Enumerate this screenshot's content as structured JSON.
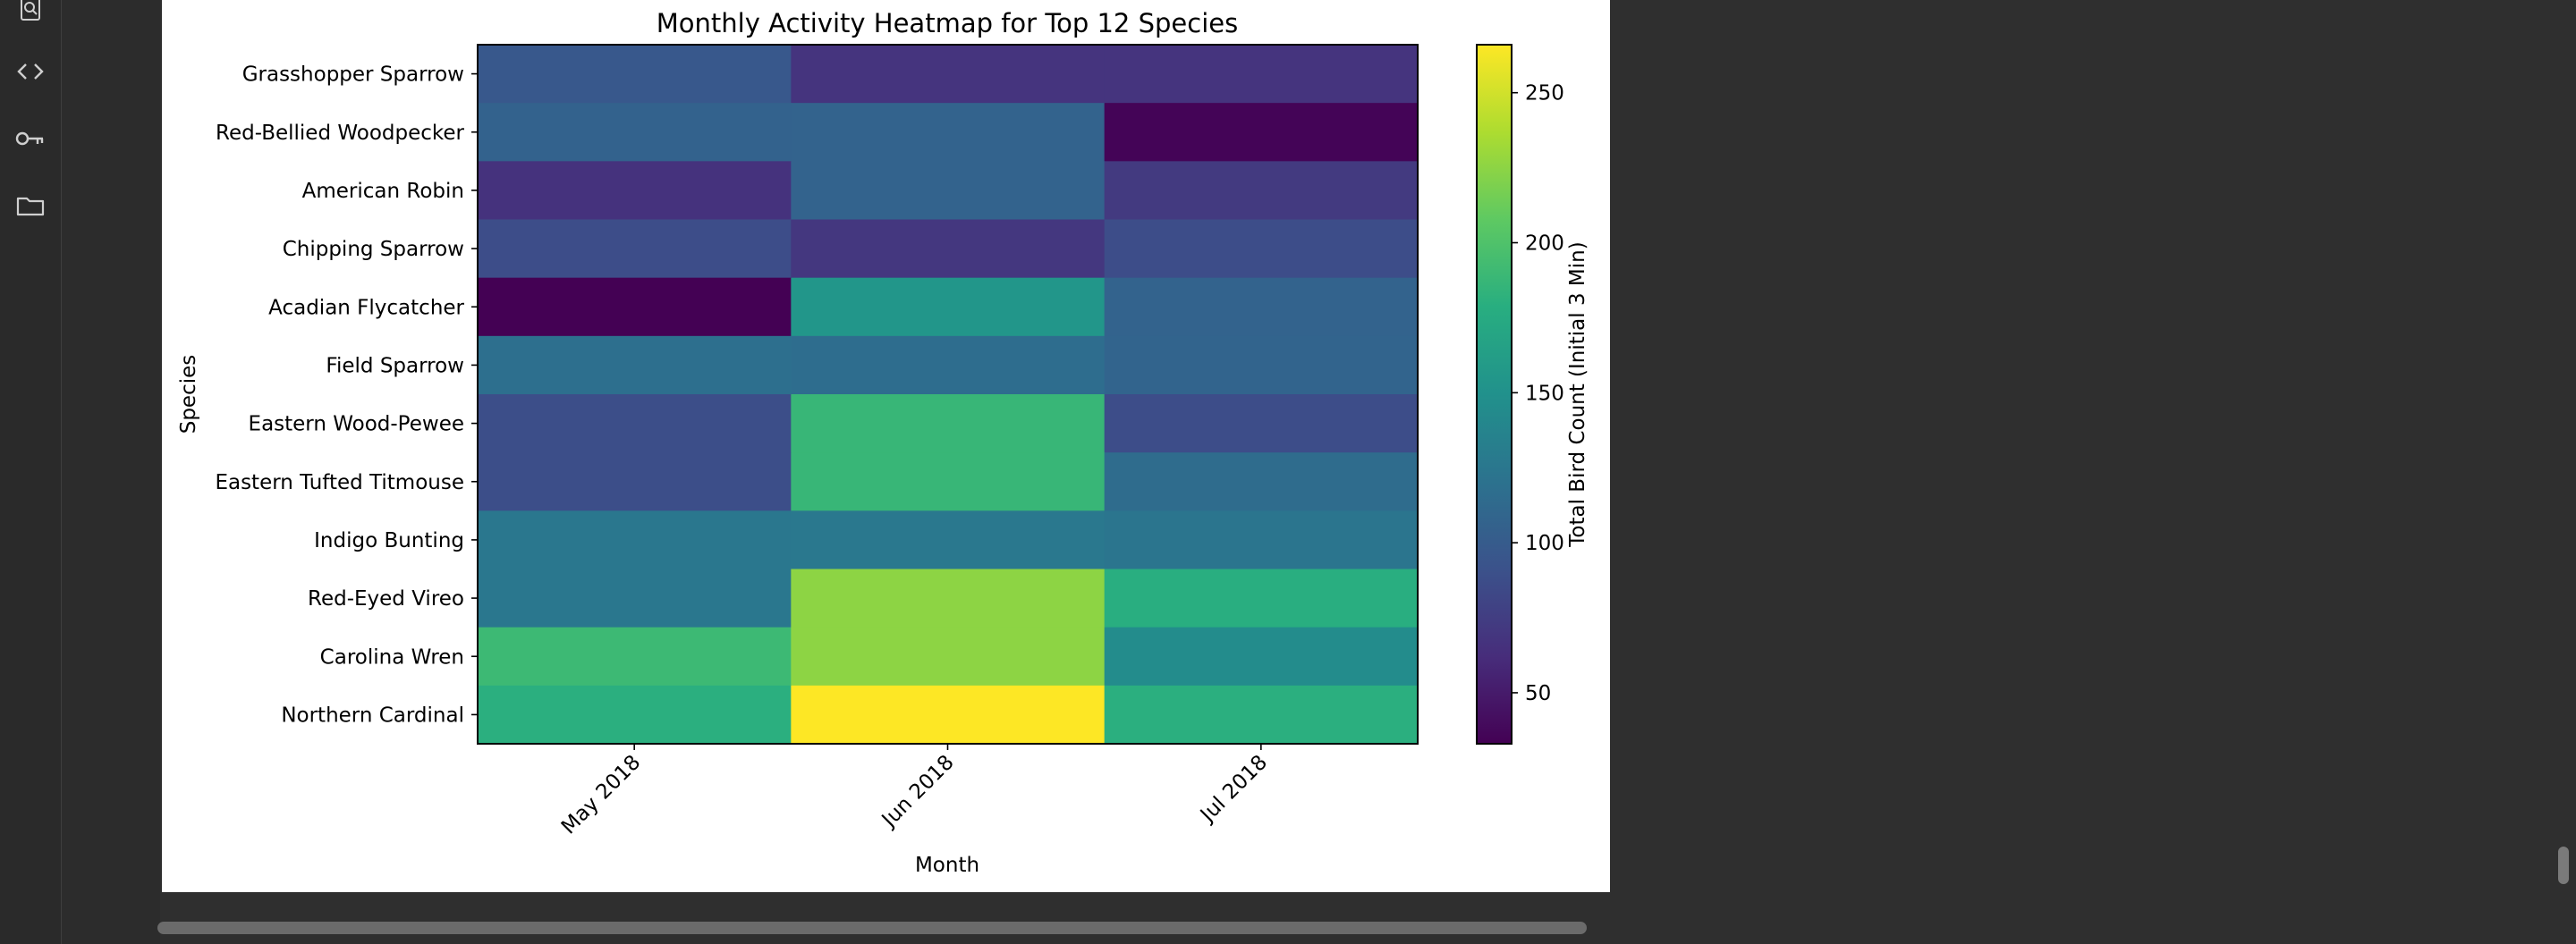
{
  "sidebar": {
    "items": [
      {
        "icon": "inspect-icon"
      },
      {
        "icon": "code-icon"
      },
      {
        "icon": "key-icon"
      },
      {
        "icon": "folder-icon"
      }
    ]
  },
  "chart_data": {
    "type": "heatmap",
    "title": "Monthly Activity Heatmap for Top 12 Species",
    "xlabel": "Month",
    "ylabel": "Species",
    "colorbar_label": "Total Bird Count (Initial 3 Min)",
    "colormap": "viridis",
    "vmin": 33,
    "vmax": 266,
    "colorbar_ticks": [
      50,
      100,
      150,
      200,
      250
    ],
    "x": [
      "May 2018",
      "Jun 2018",
      "Jul 2018"
    ],
    "y": [
      "Grasshopper Sparrow",
      "Red-Bellied Woodpecker",
      "American Robin",
      "Chipping Sparrow",
      "Acadian Flycatcher",
      "Field Sparrow",
      "Eastern Wood-Pewee",
      "Eastern Tufted Titmouse",
      "Indigo Bunting",
      "Red-Eyed Vireo",
      "Carolina Wren",
      "Northern Cardinal"
    ],
    "values": [
      [
        97,
        68,
        68
      ],
      [
        106,
        107,
        35
      ],
      [
        66,
        107,
        72
      ],
      [
        87,
        70,
        87
      ],
      [
        33,
        155,
        107
      ],
      [
        118,
        116,
        108
      ],
      [
        88,
        187,
        87
      ],
      [
        88,
        187,
        115
      ],
      [
        125,
        126,
        123
      ],
      [
        125,
        225,
        179
      ],
      [
        190,
        225,
        145
      ],
      [
        180,
        266,
        180
      ]
    ]
  }
}
